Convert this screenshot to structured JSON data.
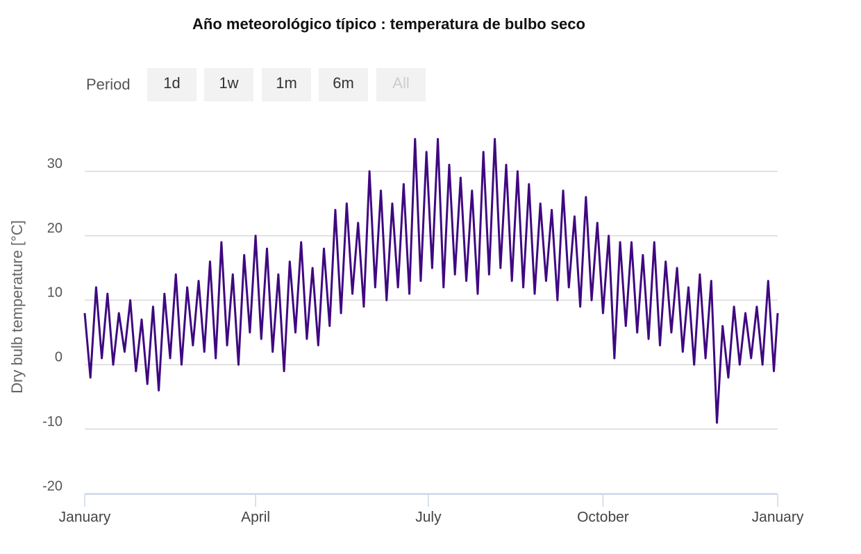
{
  "chart_data": {
    "type": "line",
    "title": "Año meteorológico típico : temperatura de bulbo seco",
    "ylabel": "Dry bulb temperature [°C]",
    "color": "#3f0880",
    "xlim": [
      0,
      365
    ],
    "xticks": [
      {
        "value": 0,
        "label": "January"
      },
      {
        "value": 90,
        "label": "April"
      },
      {
        "value": 181,
        "label": "July"
      },
      {
        "value": 273,
        "label": "October"
      },
      {
        "value": 365,
        "label": "January"
      }
    ],
    "ylim": [
      -20,
      36
    ],
    "yticks": [
      -20,
      -10,
      0,
      10,
      20,
      30
    ],
    "grid": true,
    "x": [
      0,
      3,
      6,
      9,
      12,
      15,
      18,
      21,
      24,
      27,
      30,
      33,
      36,
      39,
      42,
      45,
      48,
      51,
      54,
      57,
      60,
      63,
      66,
      69,
      72,
      75,
      78,
      81,
      84,
      87,
      90,
      93,
      96,
      99,
      102,
      105,
      108,
      111,
      114,
      117,
      120,
      123,
      126,
      129,
      132,
      135,
      138,
      141,
      144,
      147,
      150,
      153,
      156,
      159,
      162,
      165,
      168,
      171,
      174,
      177,
      180,
      183,
      186,
      189,
      192,
      195,
      198,
      201,
      204,
      207,
      210,
      213,
      216,
      219,
      222,
      225,
      228,
      231,
      234,
      237,
      240,
      243,
      246,
      249,
      252,
      255,
      258,
      261,
      264,
      267,
      270,
      273,
      276,
      279,
      282,
      285,
      288,
      291,
      294,
      297,
      300,
      303,
      306,
      309,
      312,
      315,
      318,
      321,
      324,
      327,
      330,
      333,
      336,
      339,
      342,
      345,
      348,
      351,
      354,
      357,
      360,
      363,
      365
    ],
    "values": [
      8,
      -2,
      12,
      1,
      11,
      0,
      8,
      2,
      10,
      -1,
      7,
      -3,
      9,
      -4,
      11,
      1,
      14,
      0,
      12,
      3,
      13,
      2,
      16,
      1,
      19,
      3,
      14,
      0,
      17,
      5,
      20,
      4,
      18,
      2,
      14,
      -1,
      16,
      5,
      19,
      4,
      15,
      3,
      18,
      6,
      24,
      8,
      25,
      11,
      22,
      9,
      30,
      12,
      27,
      10,
      25,
      12,
      28,
      11,
      35,
      13,
      33,
      15,
      35,
      12,
      31,
      14,
      29,
      13,
      27,
      11,
      33,
      14,
      35,
      15,
      31,
      13,
      30,
      12,
      28,
      11,
      25,
      13,
      24,
      10,
      27,
      12,
      23,
      9,
      26,
      10,
      22,
      8,
      20,
      1,
      19,
      6,
      19,
      5,
      17,
      4,
      19,
      3,
      16,
      5,
      15,
      2,
      12,
      0,
      14,
      1,
      13,
      -9,
      6,
      -2,
      9,
      0,
      8,
      1,
      9,
      0,
      13,
      -1,
      8
    ]
  },
  "range_selector": {
    "label": "Period",
    "buttons": [
      "1d",
      "1w",
      "1m",
      "6m",
      "All"
    ]
  }
}
